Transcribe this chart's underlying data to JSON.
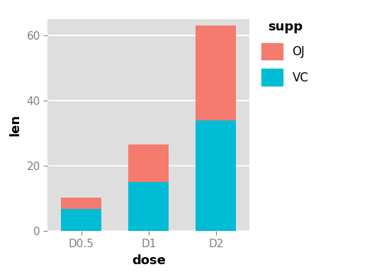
{
  "categories": [
    "D0.5",
    "D1",
    "D2"
  ],
  "vc_values": [
    6.8,
    15.0,
    34.0
  ],
  "oj_values": [
    3.5,
    11.5,
    29.0
  ],
  "vc_color": "#00BCD4",
  "oj_color": "#F47B6E",
  "xlabel": "dose",
  "ylabel": "len",
  "legend_title": "supp",
  "ylim": [
    0,
    65
  ],
  "yticks": [
    0,
    20,
    40,
    60
  ],
  "background_color": "#DEDEDE",
  "grid_color": "#FFFFFF",
  "bar_width": 0.6,
  "figsize": [
    5.18,
    3.84
  ],
  "dpi": 100
}
